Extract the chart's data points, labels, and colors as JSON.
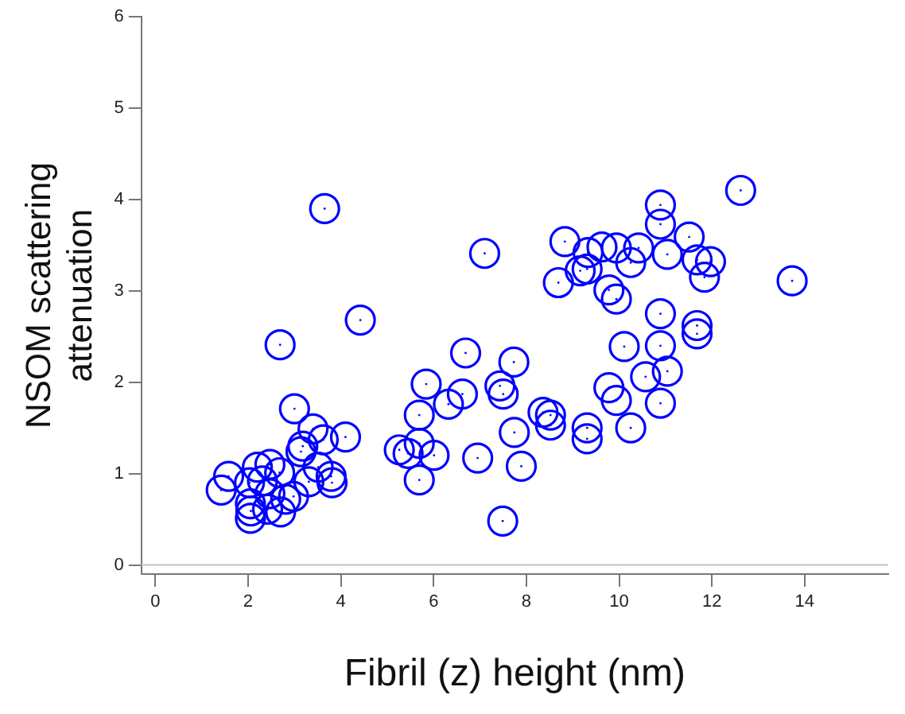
{
  "chart_data": {
    "type": "scatter",
    "xlabel": "Fibril (z) height (nm)",
    "ylabel": "NSOM scattering attenuation",
    "marker": "circle",
    "grid": false,
    "legend": false,
    "xlim": [
      -0.3,
      15.8
    ],
    "xticks": [
      0,
      2,
      4,
      6,
      8,
      10,
      12,
      14
    ],
    "ylim": [
      -0.1,
      6
    ],
    "yticks": [
      0,
      1,
      2,
      3,
      4,
      5,
      6
    ],
    "ref_lines": [
      {
        "axis": "y",
        "value": 0,
        "color": "#c0c0c0"
      }
    ],
    "series": [
      {
        "color": "#0000ff",
        "x": [
          3.65,
          4.42,
          2.69,
          3.0,
          3.4,
          3.18,
          3.14,
          3.62,
          4.1,
          3.31,
          3.79,
          3.81,
          3.51,
          1.42,
          1.58,
          2.06,
          2.05,
          2.05,
          2.2,
          2.47,
          2.68,
          2.31,
          2.03,
          2.81,
          2.7,
          2.42,
          2.98,
          2.47,
          5.26,
          5.45,
          5.69,
          5.84,
          5.69,
          5.69,
          6.01,
          12.62,
          10.89,
          10.89,
          11.51,
          11.04,
          11.68,
          11.97,
          11.84,
          13.73,
          8.83,
          9.33,
          9.63,
          9.94,
          10.42,
          10.25,
          9.16,
          9.31,
          8.69,
          9.78,
          9.94,
          7.1,
          10.89,
          11.68,
          11.68,
          10.89,
          10.11,
          11.04,
          10.57,
          10.89,
          9.78,
          9.94,
          10.25,
          7.73,
          6.69,
          6.62,
          6.32,
          7.43,
          7.5,
          8.36,
          8.52,
          8.52,
          9.31,
          9.31,
          7.74,
          6.95,
          7.89,
          7.49
        ],
        "values": [
          3.9,
          2.68,
          2.41,
          1.71,
          1.49,
          1.3,
          1.24,
          1.37,
          1.4,
          0.91,
          0.97,
          0.9,
          1.07,
          0.82,
          0.97,
          0.59,
          0.67,
          0.51,
          1.07,
          1.1,
          1.01,
          0.92,
          0.9,
          0.72,
          0.58,
          0.61,
          0.75,
          0.78,
          1.26,
          1.22,
          1.64,
          1.98,
          0.93,
          1.33,
          1.2,
          4.1,
          3.94,
          3.73,
          3.59,
          3.4,
          3.34,
          3.32,
          3.15,
          3.11,
          3.54,
          3.42,
          3.48,
          3.47,
          3.47,
          3.31,
          3.22,
          3.24,
          3.09,
          3.01,
          2.91,
          3.41,
          2.75,
          2.62,
          2.53,
          2.4,
          2.39,
          2.12,
          2.06,
          1.77,
          1.94,
          1.8,
          1.5,
          2.22,
          2.32,
          1.87,
          1.76,
          1.96,
          1.87,
          1.67,
          1.64,
          1.53,
          1.5,
          1.38,
          1.45,
          1.17,
          1.08,
          0.48
        ]
      }
    ]
  }
}
